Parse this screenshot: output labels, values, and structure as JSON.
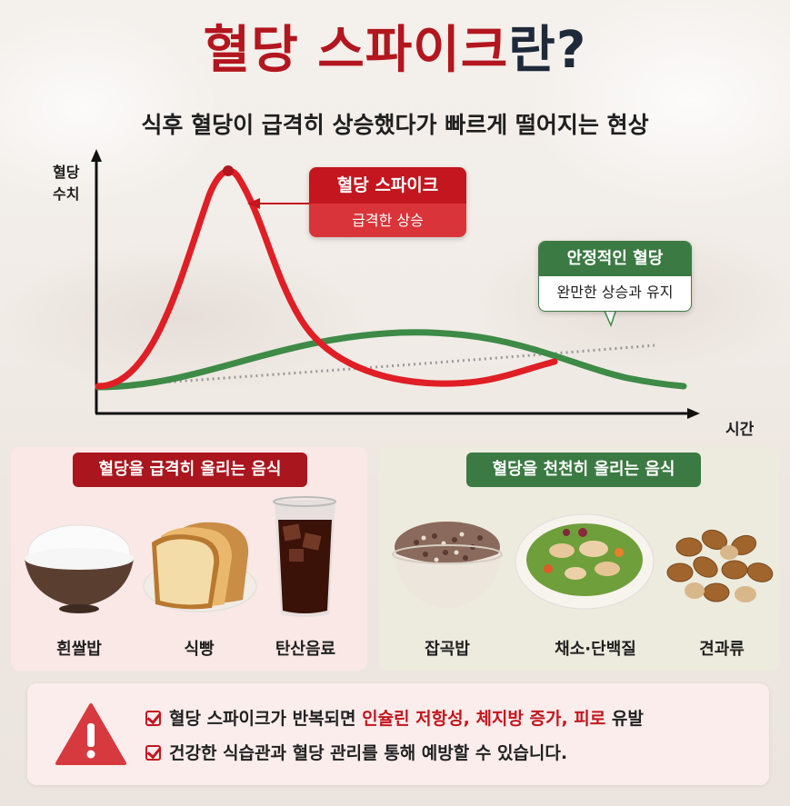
{
  "title": {
    "part1": "혈당 스파이크",
    "part2": "란?"
  },
  "subtitle": "식후 혈당이 급격히 상승했다가 빠르게 떨어지는 현상",
  "chart": {
    "y_label_line1": "혈당",
    "y_label_line2": "수치",
    "x_label": "시간",
    "spike_callout": {
      "title": "혈당 스파이크",
      "subtitle": "급격한 상승"
    },
    "stable_callout": {
      "title": "안정적인 혈당",
      "subtitle": "완만한 상승과 유지"
    },
    "colors": {
      "spike": "#e01e25",
      "stable": "#3e8a47",
      "baseline": "#9a9a9a"
    }
  },
  "fast_foods": {
    "header": "혈당을 급격히 올리는 음식",
    "items": [
      {
        "label": "흰쌀밥",
        "icon": "rice-bowl-icon"
      },
      {
        "label": "식빵",
        "icon": "bread-icon"
      },
      {
        "label": "탄산음료",
        "icon": "soda-glass-icon"
      }
    ]
  },
  "slow_foods": {
    "header": "혈당을 천천히 올리는 음식",
    "items": [
      {
        "label": "잡곡밥",
        "icon": "grain-rice-bowl-icon"
      },
      {
        "label": "채소·단백질",
        "icon": "salad-bowl-icon"
      },
      {
        "label": "견과류",
        "icon": "nuts-icon"
      }
    ]
  },
  "warning": {
    "icon": "warning-triangle-icon",
    "line1_prefix": "혈당 스파이크가 반복되면 ",
    "line1_highlight": "인슐린 저항성, 체지방 증가, 피로",
    "line1_suffix": " 유발",
    "line2": "건강한 식습관과 혈당 관리를 통해 예방할 수 있습니다."
  }
}
